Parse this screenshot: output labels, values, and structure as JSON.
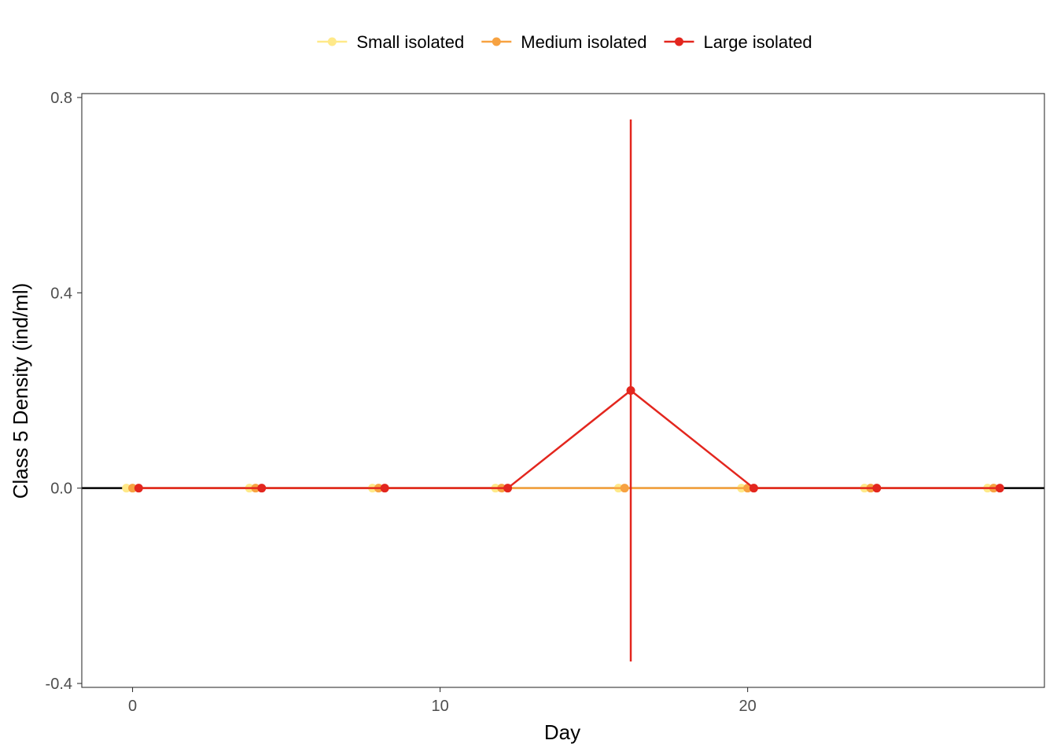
{
  "chart_data": {
    "type": "line",
    "xlabel": "Day",
    "ylabel": "Class 5 Density (ind/ml)",
    "xlim": [
      -1.65,
      29.65
    ],
    "ylim": [
      -0.408,
      0.808
    ],
    "x_ticks": [
      0,
      10,
      20
    ],
    "y_ticks": [
      -0.4,
      0,
      0.4,
      0.8
    ],
    "x_tick_labels": [
      "0",
      "10",
      "20"
    ],
    "y_tick_labels": [
      "-0.4",
      "0.0",
      "0.4",
      "0.8"
    ],
    "grid": false,
    "legend_position": "top",
    "reference_line_y": 0,
    "dodge": 0.2,
    "series": [
      {
        "name": "Small isolated",
        "color": "#FFE989",
        "x": [
          0,
          4,
          8,
          12,
          16,
          20,
          24,
          28
        ],
        "y": [
          0,
          0,
          0,
          0,
          0,
          0,
          0,
          0
        ],
        "error_low": [
          0,
          0,
          0,
          0,
          0,
          0,
          0,
          0
        ],
        "error_high": [
          0,
          0,
          0,
          0,
          0,
          0,
          0,
          0
        ]
      },
      {
        "name": "Medium isolated",
        "color": "#F7A241",
        "x": [
          0,
          4,
          8,
          12,
          16,
          20,
          24,
          28
        ],
        "y": [
          0,
          0,
          0,
          0,
          0,
          0,
          0,
          0
        ],
        "error_low": [
          0,
          0,
          0,
          0,
          0,
          0,
          0,
          0
        ],
        "error_high": [
          0,
          0,
          0,
          0,
          0,
          0,
          0,
          0
        ]
      },
      {
        "name": "Large isolated",
        "color": "#E3261E",
        "x": [
          0,
          4,
          8,
          12,
          16,
          20,
          24,
          28
        ],
        "y": [
          0,
          0,
          0,
          0,
          0.2,
          0,
          0,
          0
        ],
        "error_low": [
          0,
          0,
          0,
          0,
          -0.355,
          0,
          0,
          0
        ],
        "error_high": [
          0,
          0,
          0,
          0,
          0.755,
          0,
          0,
          0
        ]
      }
    ]
  }
}
